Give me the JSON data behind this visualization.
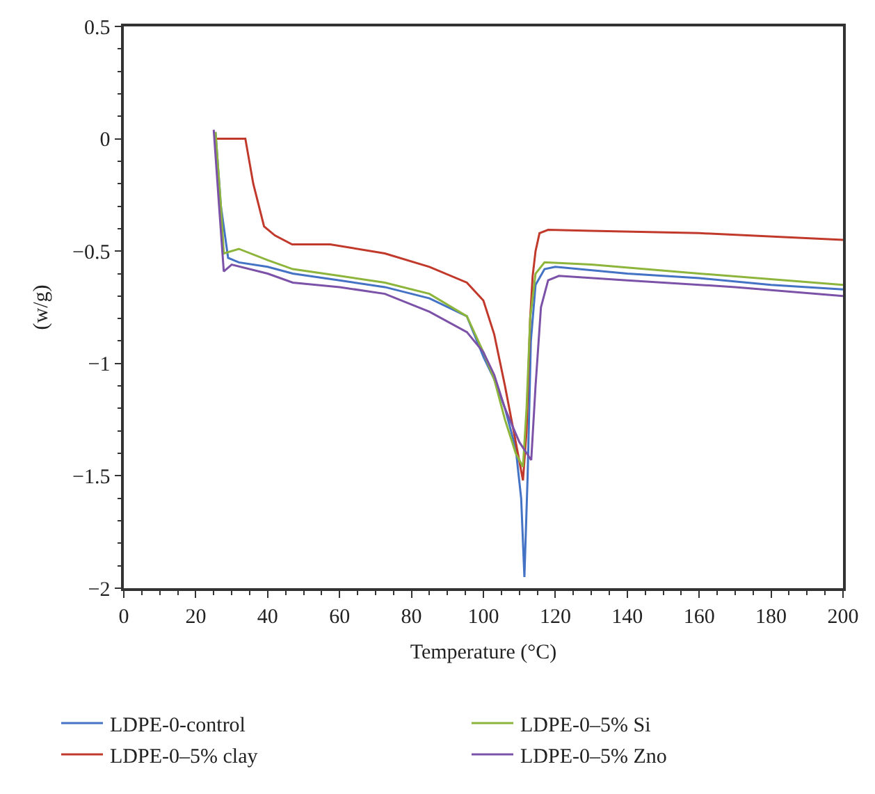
{
  "chart_data": {
    "type": "line",
    "xlabel": "Temperature (°C)",
    "ylabel": "(w/g)",
    "xlim": [
      0,
      200
    ],
    "ylim": [
      -2,
      0.5
    ],
    "xticks": [
      0,
      20,
      40,
      60,
      80,
      100,
      120,
      140,
      160,
      180,
      200
    ],
    "yticks": [
      -2,
      -1.5,
      -1,
      -0.5,
      0,
      0.5
    ],
    "grid": false,
    "legend": "bottom",
    "marker": "none",
    "line_style": "solid",
    "series": [
      {
        "name": "LDPE-0-control",
        "color": "#4472c4",
        "x": [
          25.5,
          27,
          29,
          32,
          40,
          47,
          60,
          72.6,
          85,
          95.4,
          100,
          103,
          106,
          109,
          110.5,
          111.4,
          112.3,
          113.2,
          114.5,
          117,
          120,
          140,
          160,
          180,
          200
        ],
        "values": [
          0.03,
          -0.3,
          -0.53,
          -0.55,
          -0.57,
          -0.6,
          -0.63,
          -0.66,
          -0.71,
          -0.79,
          -0.97,
          -1.07,
          -1.2,
          -1.38,
          -1.6,
          -1.95,
          -1.5,
          -0.9,
          -0.65,
          -0.58,
          -0.57,
          -0.6,
          -0.62,
          -0.65,
          -0.67
        ]
      },
      {
        "name": "LDPE-0–5% clay",
        "color": "#c0392b",
        "x": [
          25.5,
          30,
          33.8,
          36,
          39,
          42,
          46.8,
          57.4,
          72.6,
          85,
          95.4,
          100,
          103,
          106,
          109,
          111,
          112,
          113,
          113.7,
          114.5,
          115.6,
          118,
          130,
          160,
          200
        ],
        "values": [
          0,
          0,
          0,
          -0.2,
          -0.39,
          -0.43,
          -0.47,
          -0.47,
          -0.51,
          -0.57,
          -0.64,
          -0.72,
          -0.87,
          -1.1,
          -1.35,
          -1.52,
          -1.3,
          -0.8,
          -0.61,
          -0.5,
          -0.42,
          -0.405,
          -0.41,
          -0.42,
          -0.45
        ]
      },
      {
        "name": "LDPE-0–5% Si",
        "color": "#8db53c",
        "x": [
          25.5,
          27,
          27.8,
          32,
          40,
          47,
          60,
          72.6,
          85,
          95.4,
          100,
          103,
          106,
          109,
          111,
          112,
          113,
          114.5,
          117,
          130,
          160,
          200
        ],
        "values": [
          0.03,
          -0.3,
          -0.51,
          -0.49,
          -0.54,
          -0.58,
          -0.61,
          -0.64,
          -0.69,
          -0.79,
          -0.95,
          -1.07,
          -1.25,
          -1.4,
          -1.46,
          -1.2,
          -0.8,
          -0.6,
          -0.55,
          -0.56,
          -0.6,
          -0.65
        ]
      },
      {
        "name": "LDPE-0–5% Zno",
        "color": "#7b52a8",
        "x": [
          25,
          26.5,
          27.8,
          30,
          40,
          47,
          60,
          72.6,
          85,
          95.4,
          100,
          103,
          106,
          110,
          113.3,
          114.5,
          116,
          118,
          121,
          140,
          170,
          200
        ],
        "values": [
          0.04,
          -0.3,
          -0.59,
          -0.56,
          -0.6,
          -0.64,
          -0.66,
          -0.69,
          -0.77,
          -0.86,
          -0.95,
          -1.05,
          -1.2,
          -1.35,
          -1.43,
          -1.1,
          -0.75,
          -0.63,
          -0.61,
          -0.63,
          -0.66,
          -0.7
        ]
      }
    ]
  }
}
